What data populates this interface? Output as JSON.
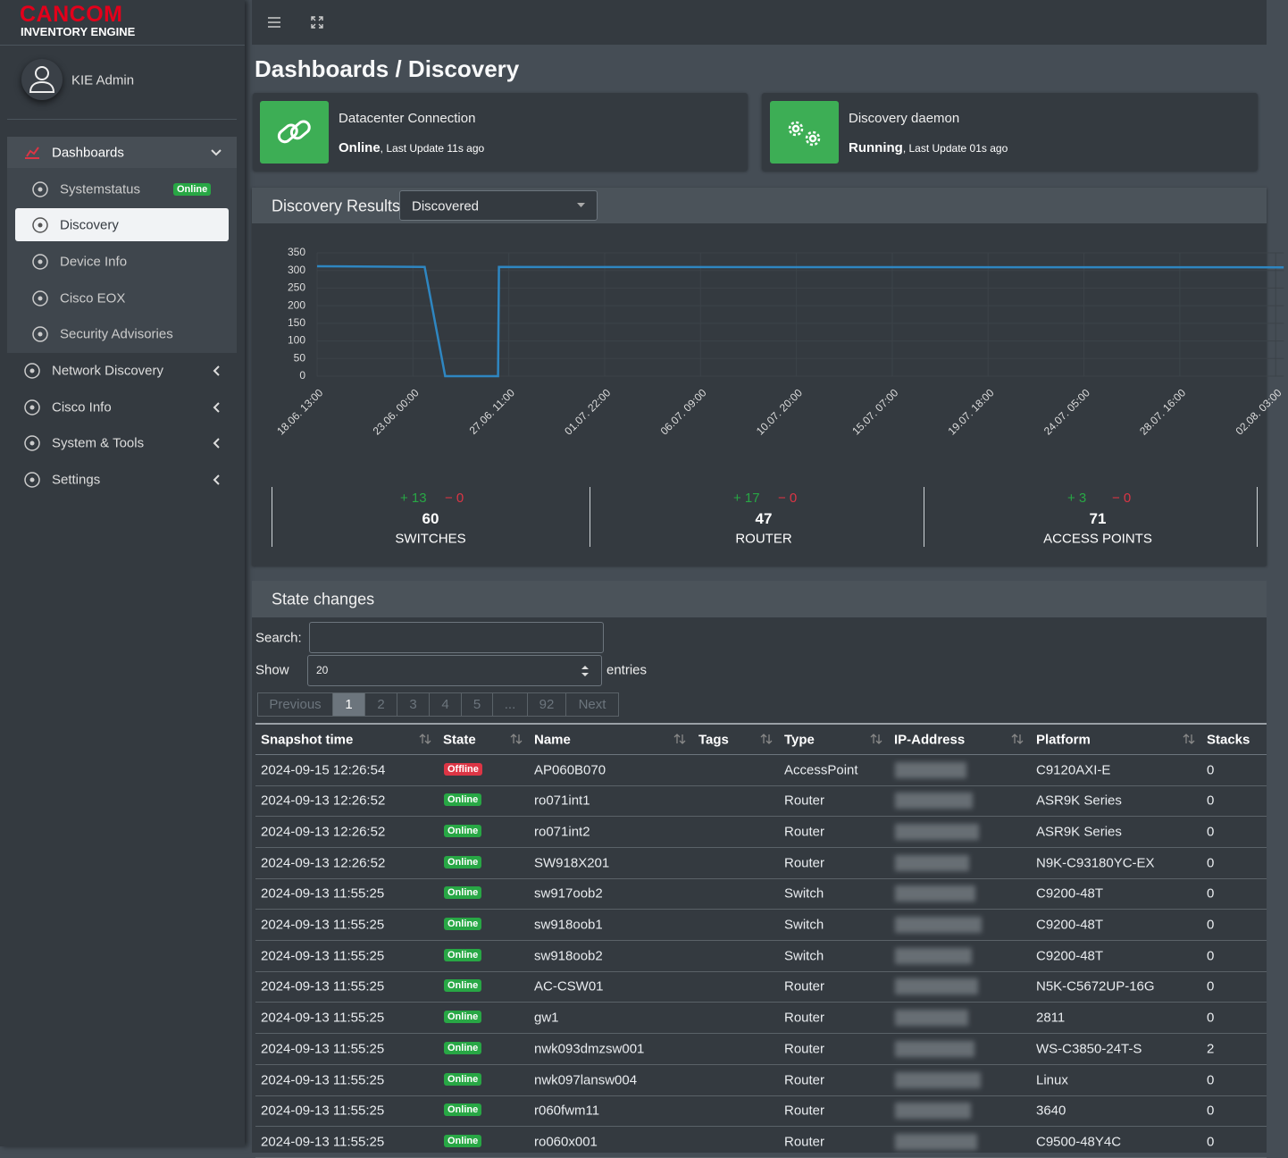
{
  "brand": {
    "name": "CANCOM",
    "product": "INVENTORY ENGINE"
  },
  "user": {
    "name": "KIE Admin"
  },
  "state_colors": {
    "Online": "#28a745",
    "Offline": "#dc3545"
  },
  "nav": [
    {
      "label": "Dashboards",
      "children": [
        {
          "label": "Systemstatus",
          "badge": "Online"
        },
        {
          "label": "Discovery",
          "active": true
        },
        {
          "label": "Device Info"
        },
        {
          "label": "Cisco EOX"
        },
        {
          "label": "Security Advisories"
        }
      ]
    },
    {
      "label": "Network Discovery"
    },
    {
      "label": "Cisco Info"
    },
    {
      "label": "System & Tools"
    },
    {
      "label": "Settings"
    }
  ],
  "page_title": "Dashboards / Discovery",
  "status_cards": [
    {
      "title": "Datacenter Connection",
      "state": "Online",
      "detail": ", Last Update 11s ago"
    },
    {
      "title": "Discovery daemon",
      "state": "Running",
      "detail": ", Last Update 01s ago"
    }
  ],
  "discovery_results": {
    "title": "Discovery Results",
    "filter": "Discovered"
  },
  "chart_data": {
    "type": "line",
    "x": [
      "18.06. 13:00",
      "23.06. 13:00",
      "24.06. 12:00",
      "26.06. 23:00",
      "27.06. 00:00",
      "02.08. 12:00"
    ],
    "values": [
      312,
      310,
      0,
      0,
      310,
      309
    ],
    "color": "#2e86c1",
    "xlim": [
      "18.06. 13:00",
      "02.08. 12:00"
    ],
    "xticks": [
      "18.06. 13:00",
      "23.06. 00:00",
      "27.06. 11:00",
      "01.07. 22:00",
      "06.07. 09:00",
      "10.07. 20:00",
      "15.07. 07:00",
      "19.07. 18:00",
      "24.07. 05:00",
      "28.07. 16:00",
      "02.08. 03:00"
    ],
    "ylim": [
      0,
      350
    ],
    "yticks": [
      0,
      50,
      100,
      150,
      200,
      250,
      300,
      350
    ],
    "grid": true
  },
  "summary": [
    {
      "added": "+ 13",
      "removed": "− 0",
      "total": 60,
      "label": "SWITCHES"
    },
    {
      "added": "+ 17",
      "removed": "− 0",
      "total": 47,
      "label": "ROUTER"
    },
    {
      "added": "+ 3",
      "removed": "− 0",
      "total": 71,
      "label": "ACCESS POINTS"
    }
  ],
  "state_changes": {
    "title": "State changes",
    "search_label": "Search:",
    "show_label": "Show",
    "page_size": "20",
    "entries_label": "entries",
    "pagination": [
      {
        "label": "Previous"
      },
      {
        "label": "1",
        "active": true
      },
      {
        "label": "2"
      },
      {
        "label": "3"
      },
      {
        "label": "4"
      },
      {
        "label": "5"
      },
      {
        "label": "..."
      },
      {
        "label": "92"
      },
      {
        "label": "Next"
      }
    ],
    "columns": [
      "Snapshot time",
      "State",
      "Name",
      "Tags",
      "Type",
      "IP-Address",
      "Platform",
      "Stacks"
    ],
    "rows": [
      {
        "time": "2024-09-15 12:26:54",
        "state": "Offline",
        "name": "AP060B070",
        "type": "AccessPoint",
        "platform": "C9120AXI-E",
        "stacks": 0
      },
      {
        "time": "2024-09-13 12:26:52",
        "state": "Online",
        "name": "ro071int1",
        "type": "Router",
        "platform": "ASR9K Series",
        "stacks": 0
      },
      {
        "time": "2024-09-13 12:26:52",
        "state": "Online",
        "name": "ro071int2",
        "type": "Router",
        "platform": "ASR9K Series",
        "stacks": 0
      },
      {
        "time": "2024-09-13 12:26:52",
        "state": "Online",
        "name": "SW918X201",
        "type": "Router",
        "platform": "N9K-C93180YC-EX",
        "stacks": 0
      },
      {
        "time": "2024-09-13 11:55:25",
        "state": "Online",
        "name": "sw917oob2",
        "type": "Switch",
        "platform": "C9200-48T",
        "stacks": 0
      },
      {
        "time": "2024-09-13 11:55:25",
        "state": "Online",
        "name": "sw918oob1",
        "type": "Switch",
        "platform": "C9200-48T",
        "stacks": 0
      },
      {
        "time": "2024-09-13 11:55:25",
        "state": "Online",
        "name": "sw918oob2",
        "type": "Switch",
        "platform": "C9200-48T",
        "stacks": 0
      },
      {
        "time": "2024-09-13 11:55:25",
        "state": "Online",
        "name": "AC-CSW01",
        "type": "Router",
        "platform": "N5K-C5672UP-16G",
        "stacks": 0
      },
      {
        "time": "2024-09-13 11:55:25",
        "state": "Online",
        "name": "gw1",
        "type": "Router",
        "platform": "2811",
        "stacks": 0
      },
      {
        "time": "2024-09-13 11:55:25",
        "state": "Online",
        "name": "nwk093dmzsw001",
        "type": "Router",
        "platform": "WS-C3850-24T-S",
        "stacks": 2
      },
      {
        "time": "2024-09-13 11:55:25",
        "state": "Online",
        "name": "nwk097lansw004",
        "type": "Router",
        "platform": "Linux",
        "stacks": 0
      },
      {
        "time": "2024-09-13 11:55:25",
        "state": "Online",
        "name": "r060fwm11",
        "type": "Router",
        "platform": "3640",
        "stacks": 0
      },
      {
        "time": "2024-09-13 11:55:25",
        "state": "Online",
        "name": "ro060x001",
        "type": "Router",
        "platform": "C9500-48Y4C",
        "stacks": 0
      }
    ]
  }
}
